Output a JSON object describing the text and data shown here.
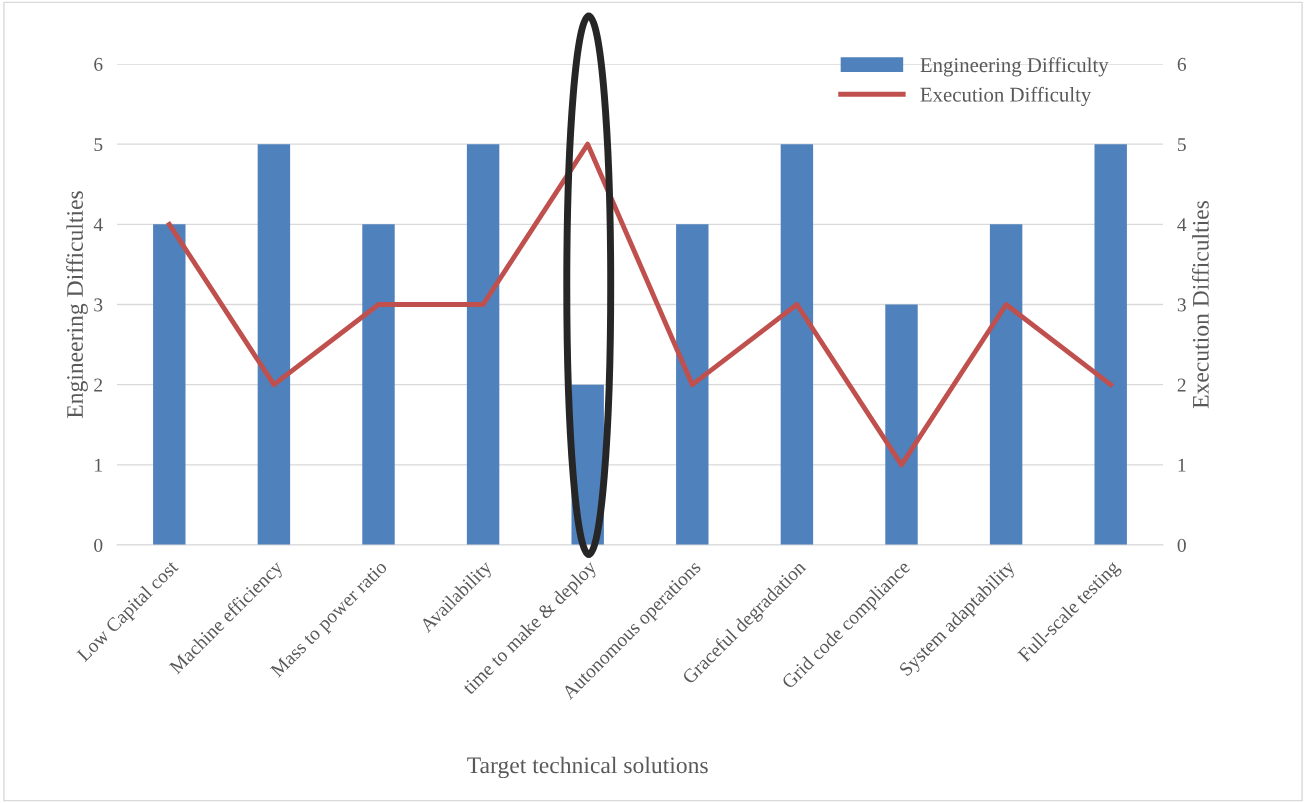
{
  "chart_data": {
    "type": "bar",
    "xlabel": "Target technical solutions",
    "ylabel": "Engineering Difficulties",
    "y2label": "Execution Difficulties",
    "categories": [
      "Low Capital cost",
      "Machine efficiency",
      "Mass to power ratio",
      "Availability",
      "time to make & deploy",
      "Autonomous operations",
      "Graceful degradation",
      "Grid code compliance",
      "System adaptability",
      "Full-scale testing"
    ],
    "series": [
      {
        "name": "Engineering Difficulty",
        "color": "#4f81bd",
        "values": [
          4,
          5,
          4,
          5,
          2,
          4,
          5,
          3,
          4,
          5
        ]
      },
      {
        "name": "Execution Difficulty",
        "type": "line",
        "axis": "y2",
        "color": "#c0504d",
        "values": [
          4,
          2,
          3,
          3,
          5,
          2,
          3,
          1,
          3,
          2
        ]
      }
    ],
    "ylim": [
      0,
      6
    ],
    "yticks": [
      0,
      1,
      2,
      3,
      4,
      5,
      6
    ],
    "y2lim": [
      0,
      6
    ],
    "y2ticks": [
      0,
      1,
      2,
      3,
      4,
      5,
      6
    ],
    "grid": "y",
    "legend": "top right",
    "marker": "none",
    "line_style": "solid"
  }
}
